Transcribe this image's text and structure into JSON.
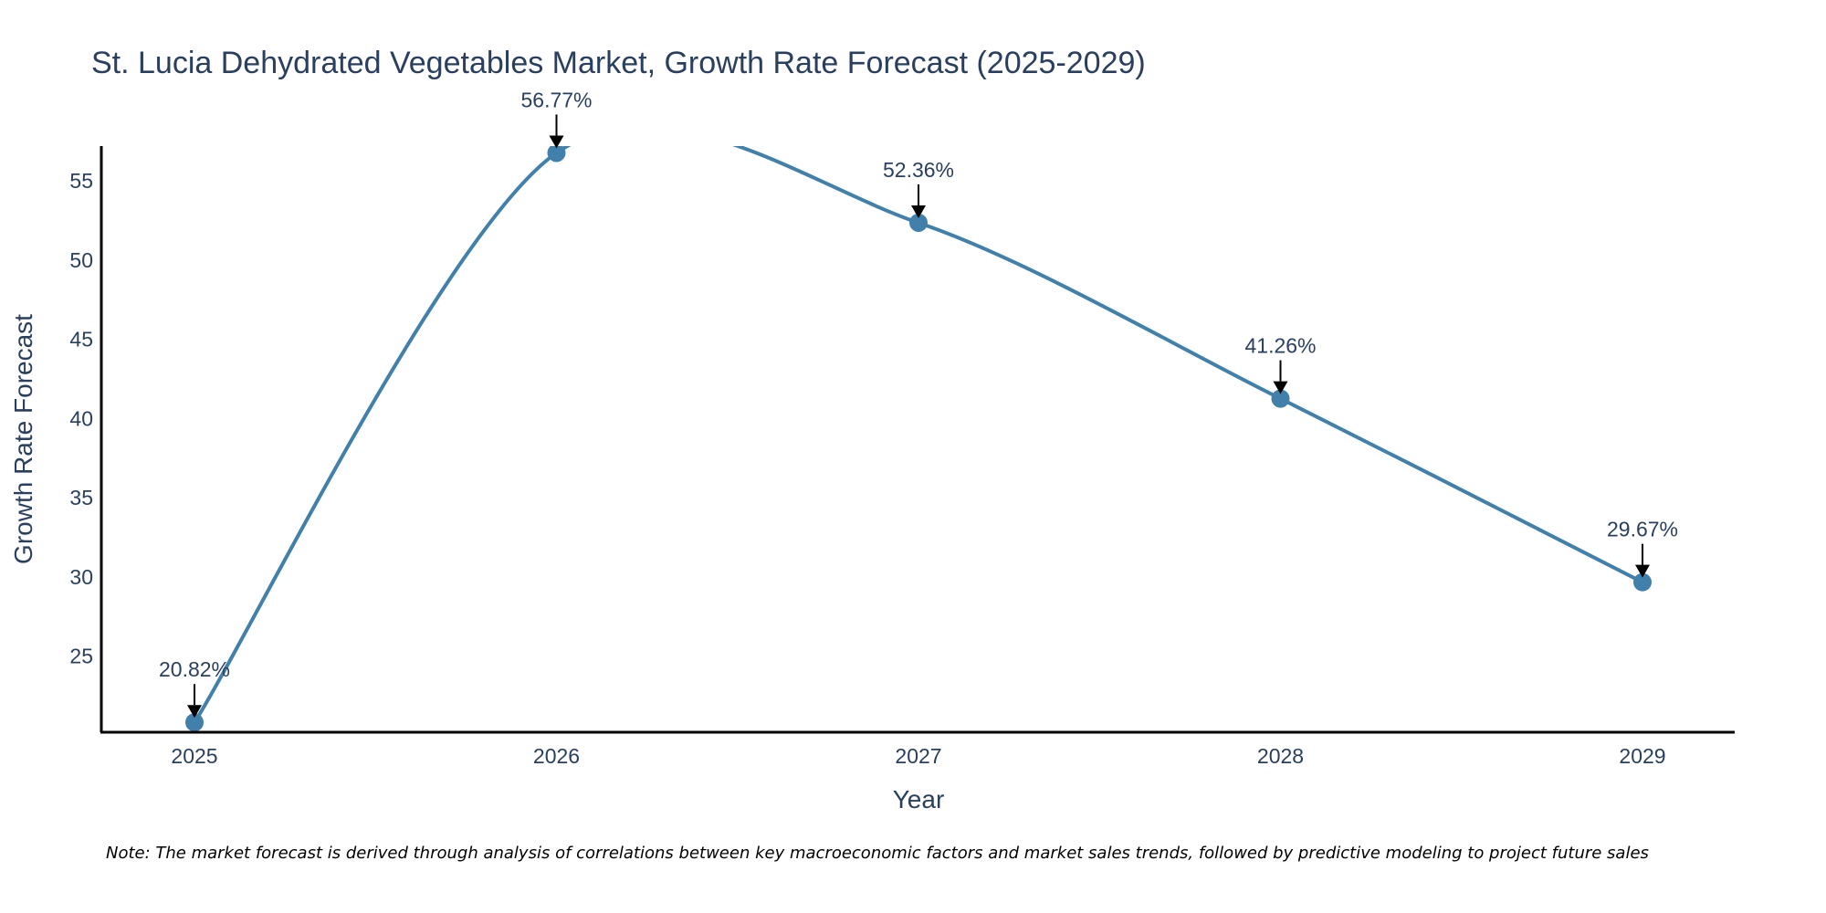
{
  "chart_data": {
    "type": "line",
    "title": "St. Lucia Dehydrated Vegetables Market, Growth Rate Forecast (2025-2029)",
    "xlabel": "Year",
    "ylabel": "Growth Rate Forecast",
    "x": [
      "2025",
      "2026",
      "2027",
      "2028",
      "2029"
    ],
    "series": [
      {
        "name": "Growth Rate Forecast",
        "values": [
          20.82,
          56.77,
          52.36,
          41.26,
          29.67
        ],
        "labels": [
          "20.82%",
          "56.77%",
          "52.36%",
          "41.26%",
          "29.67%"
        ],
        "color": "#4080ab"
      }
    ],
    "yticks": [
      25,
      30,
      35,
      40,
      45,
      50,
      55
    ],
    "ylim": [
      20.2,
      57.2
    ],
    "grid": false,
    "line_shape": "spline",
    "note": "Note: The market forecast is derived through analysis of correlations between key macroeconomic factors and market sales trends, followed by predictive modeling to project future sales"
  },
  "colors": {
    "line": "#4080ab",
    "text": "#2a3f5f",
    "axis": "#000000",
    "arrow": "#000000",
    "background": "#ffffff"
  }
}
